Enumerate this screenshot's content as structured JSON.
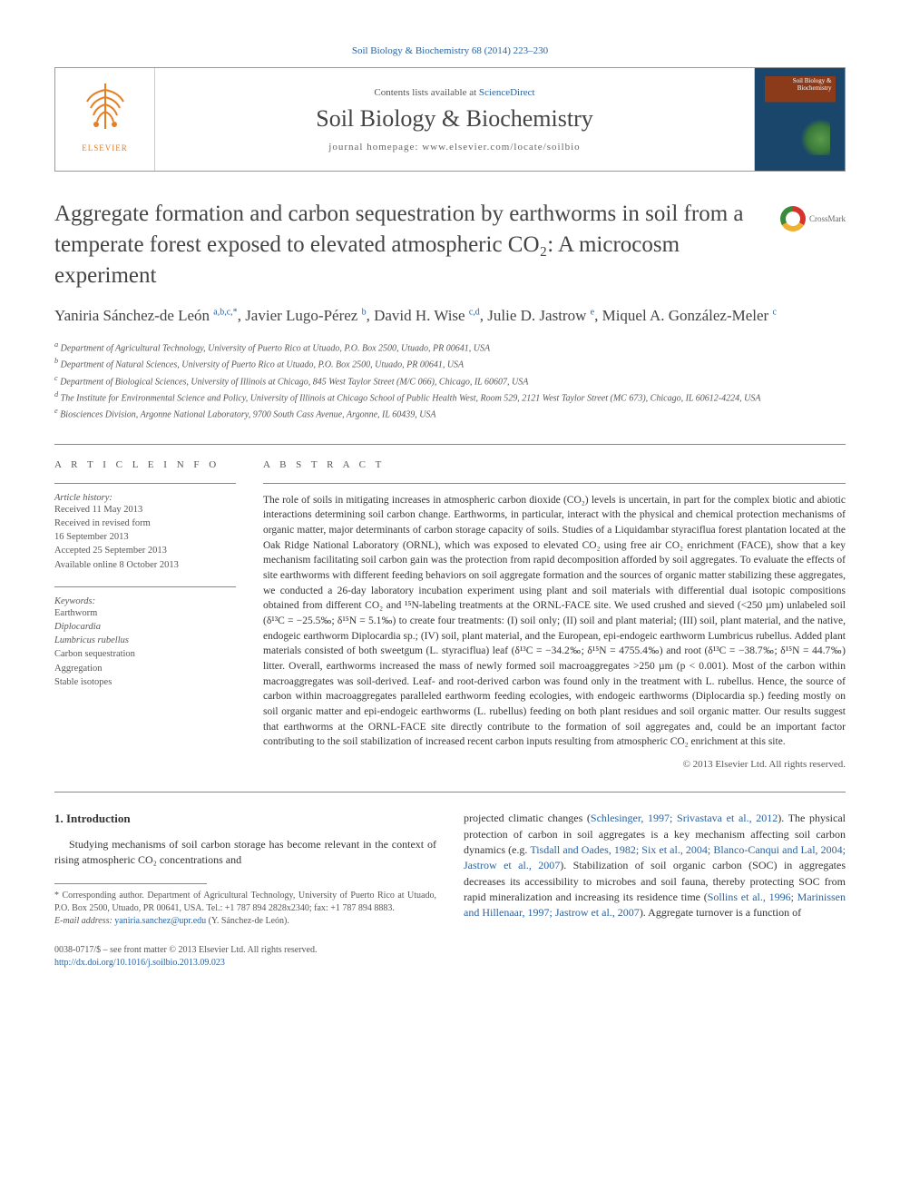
{
  "top_link": "Soil Biology & Biochemistry 68 (2014) 223–230",
  "header": {
    "contents_prefix": "Contents lists available at ",
    "contents_link": "ScienceDirect",
    "journal": "Soil Biology & Biochemistry",
    "homepage": "journal homepage: www.elsevier.com/locate/soilbio",
    "elsevier": "ELSEVIER",
    "cover_label": "Soil Biology & Biochemistry"
  },
  "crossmark": "CrossMark",
  "title": "Aggregate formation and carbon sequestration by earthworms in soil from a temperate forest exposed to elevated atmospheric CO₂: A microcosm experiment",
  "authors_html": "Yaniria Sánchez-de León <sup>a,b,c,*</sup>, Javier Lugo-Pérez <sup>b</sup>, David H. Wise <sup>c,d</sup>, Julie D. Jastrow <sup>e</sup>, Miquel A. González-Meler <sup>c</sup>",
  "affiliations": [
    "a Department of Agricultural Technology, University of Puerto Rico at Utuado, P.O. Box 2500, Utuado, PR 00641, USA",
    "b Department of Natural Sciences, University of Puerto Rico at Utuado, P.O. Box 2500, Utuado, PR 00641, USA",
    "c Department of Biological Sciences, University of Illinois at Chicago, 845 West Taylor Street (M/C 066), Chicago, IL 60607, USA",
    "d The Institute for Environmental Science and Policy, University of Illinois at Chicago School of Public Health West, Room 529, 2121 West Taylor Street (MC 673), Chicago, IL 60612-4224, USA",
    "e Biosciences Division, Argonne National Laboratory, 9700 South Cass Avenue, Argonne, IL 60439, USA"
  ],
  "info": {
    "heading": "A R T I C L E   I N F O",
    "history_label": "Article history:",
    "history": [
      "Received 11 May 2013",
      "Received in revised form",
      "16 September 2013",
      "Accepted 25 September 2013",
      "Available online 8 October 2013"
    ],
    "keywords_label": "Keywords:",
    "keywords": [
      "Earthworm",
      "Diplocardia",
      "Lumbricus rubellus",
      "Carbon sequestration",
      "Aggregation",
      "Stable isotopes"
    ]
  },
  "abstract": {
    "heading": "A B S T R A C T",
    "text": "The role of soils in mitigating increases in atmospheric carbon dioxide (CO₂) levels is uncertain, in part for the complex biotic and abiotic interactions determining soil carbon change. Earthworms, in particular, interact with the physical and chemical protection mechanisms of organic matter, major determinants of carbon storage capacity of soils. Studies of a Liquidambar styraciflua forest plantation located at the Oak Ridge National Laboratory (ORNL), which was exposed to elevated CO₂ using free air CO₂ enrichment (FACE), show that a key mechanism facilitating soil carbon gain was the protection from rapid decomposition afforded by soil aggregates. To evaluate the effects of site earthworms with different feeding behaviors on soil aggregate formation and the sources of organic matter stabilizing these aggregates, we conducted a 26-day laboratory incubation experiment using plant and soil materials with differential dual isotopic compositions obtained from different CO₂ and ¹⁵N-labeling treatments at the ORNL-FACE site. We used crushed and sieved (<250 µm) unlabeled soil (δ¹³C = −25.5‰; δ¹⁵N = 5.1‰) to create four treatments: (I) soil only; (II) soil and plant material; (III) soil, plant material, and the native, endogeic earthworm Diplocardia sp.; (IV) soil, plant material, and the European, epi-endogeic earthworm Lumbricus rubellus. Added plant materials consisted of both sweetgum (L. styraciflua) leaf (δ¹³C = −34.2‰; δ¹⁵N = 4755.4‰) and root (δ¹³C = −38.7‰; δ¹⁵N = 44.7‰) litter. Overall, earthworms increased the mass of newly formed soil macroaggregates >250 µm (p < 0.001). Most of the carbon within macroaggregates was soil-derived. Leaf- and root-derived carbon was found only in the treatment with L. rubellus. Hence, the source of carbon within macroaggregates paralleled earthworm feeding ecologies, with endogeic earthworms (Diplocardia sp.) feeding mostly on soil organic matter and epi-endogeic earthworms (L. rubellus) feeding on both plant residues and soil organic matter. Our results suggest that earthworms at the ORNL-FACE site directly contribute to the formation of soil aggregates and, could be an important factor contributing to the soil stabilization of increased recent carbon inputs resulting from atmospheric CO₂ enrichment at this site.",
    "copyright": "© 2013 Elsevier Ltd. All rights reserved."
  },
  "body": {
    "section_num": "1.",
    "section_title": "Introduction",
    "para1": "Studying mechanisms of soil carbon storage has become relevant in the context of rising atmospheric CO₂ concentrations and",
    "para2_pre": "projected climatic changes (",
    "para2_ref1": "Schlesinger, 1997; Srivastava et al., 2012",
    "para2_mid1": "). The physical protection of carbon in soil aggregates is a key mechanism affecting soil carbon dynamics (e.g. ",
    "para2_ref2": "Tisdall and Oades, 1982; Six et al., 2004; Blanco-Canqui and Lal, 2004; Jastrow et al., 2007",
    "para2_mid2": "). Stabilization of soil organic carbon (SOC) in aggregates decreases its accessibility to microbes and soil fauna, thereby protecting SOC from rapid mineralization and increasing its residence time (",
    "para2_ref3": "Sollins et al., 1996; Marinissen and Hillenaar, 1997; Jastrow et al., 2007",
    "para2_post": "). Aggregate turnover is a function of"
  },
  "footnote": {
    "corr": "* Corresponding author. Department of Agricultural Technology, University of Puerto Rico at Utuado, P.O. Box 2500, Utuado, PR 00641, USA. Tel.: +1 787 894 2828x2340; fax: +1 787 894 8883.",
    "email_label": "E-mail address: ",
    "email": "yaniria.sanchez@upr.edu",
    "email_suffix": " (Y. Sánchez-de León)."
  },
  "footer": {
    "issn": "0038-0717/$ – see front matter © 2013 Elsevier Ltd. All rights reserved.",
    "doi": "http://dx.doi.org/10.1016/j.soilbio.2013.09.023"
  },
  "colors": {
    "link": "#2963a0",
    "text": "#333333",
    "muted": "#555555",
    "border": "#888888",
    "elsevier_orange": "#e67e22"
  }
}
